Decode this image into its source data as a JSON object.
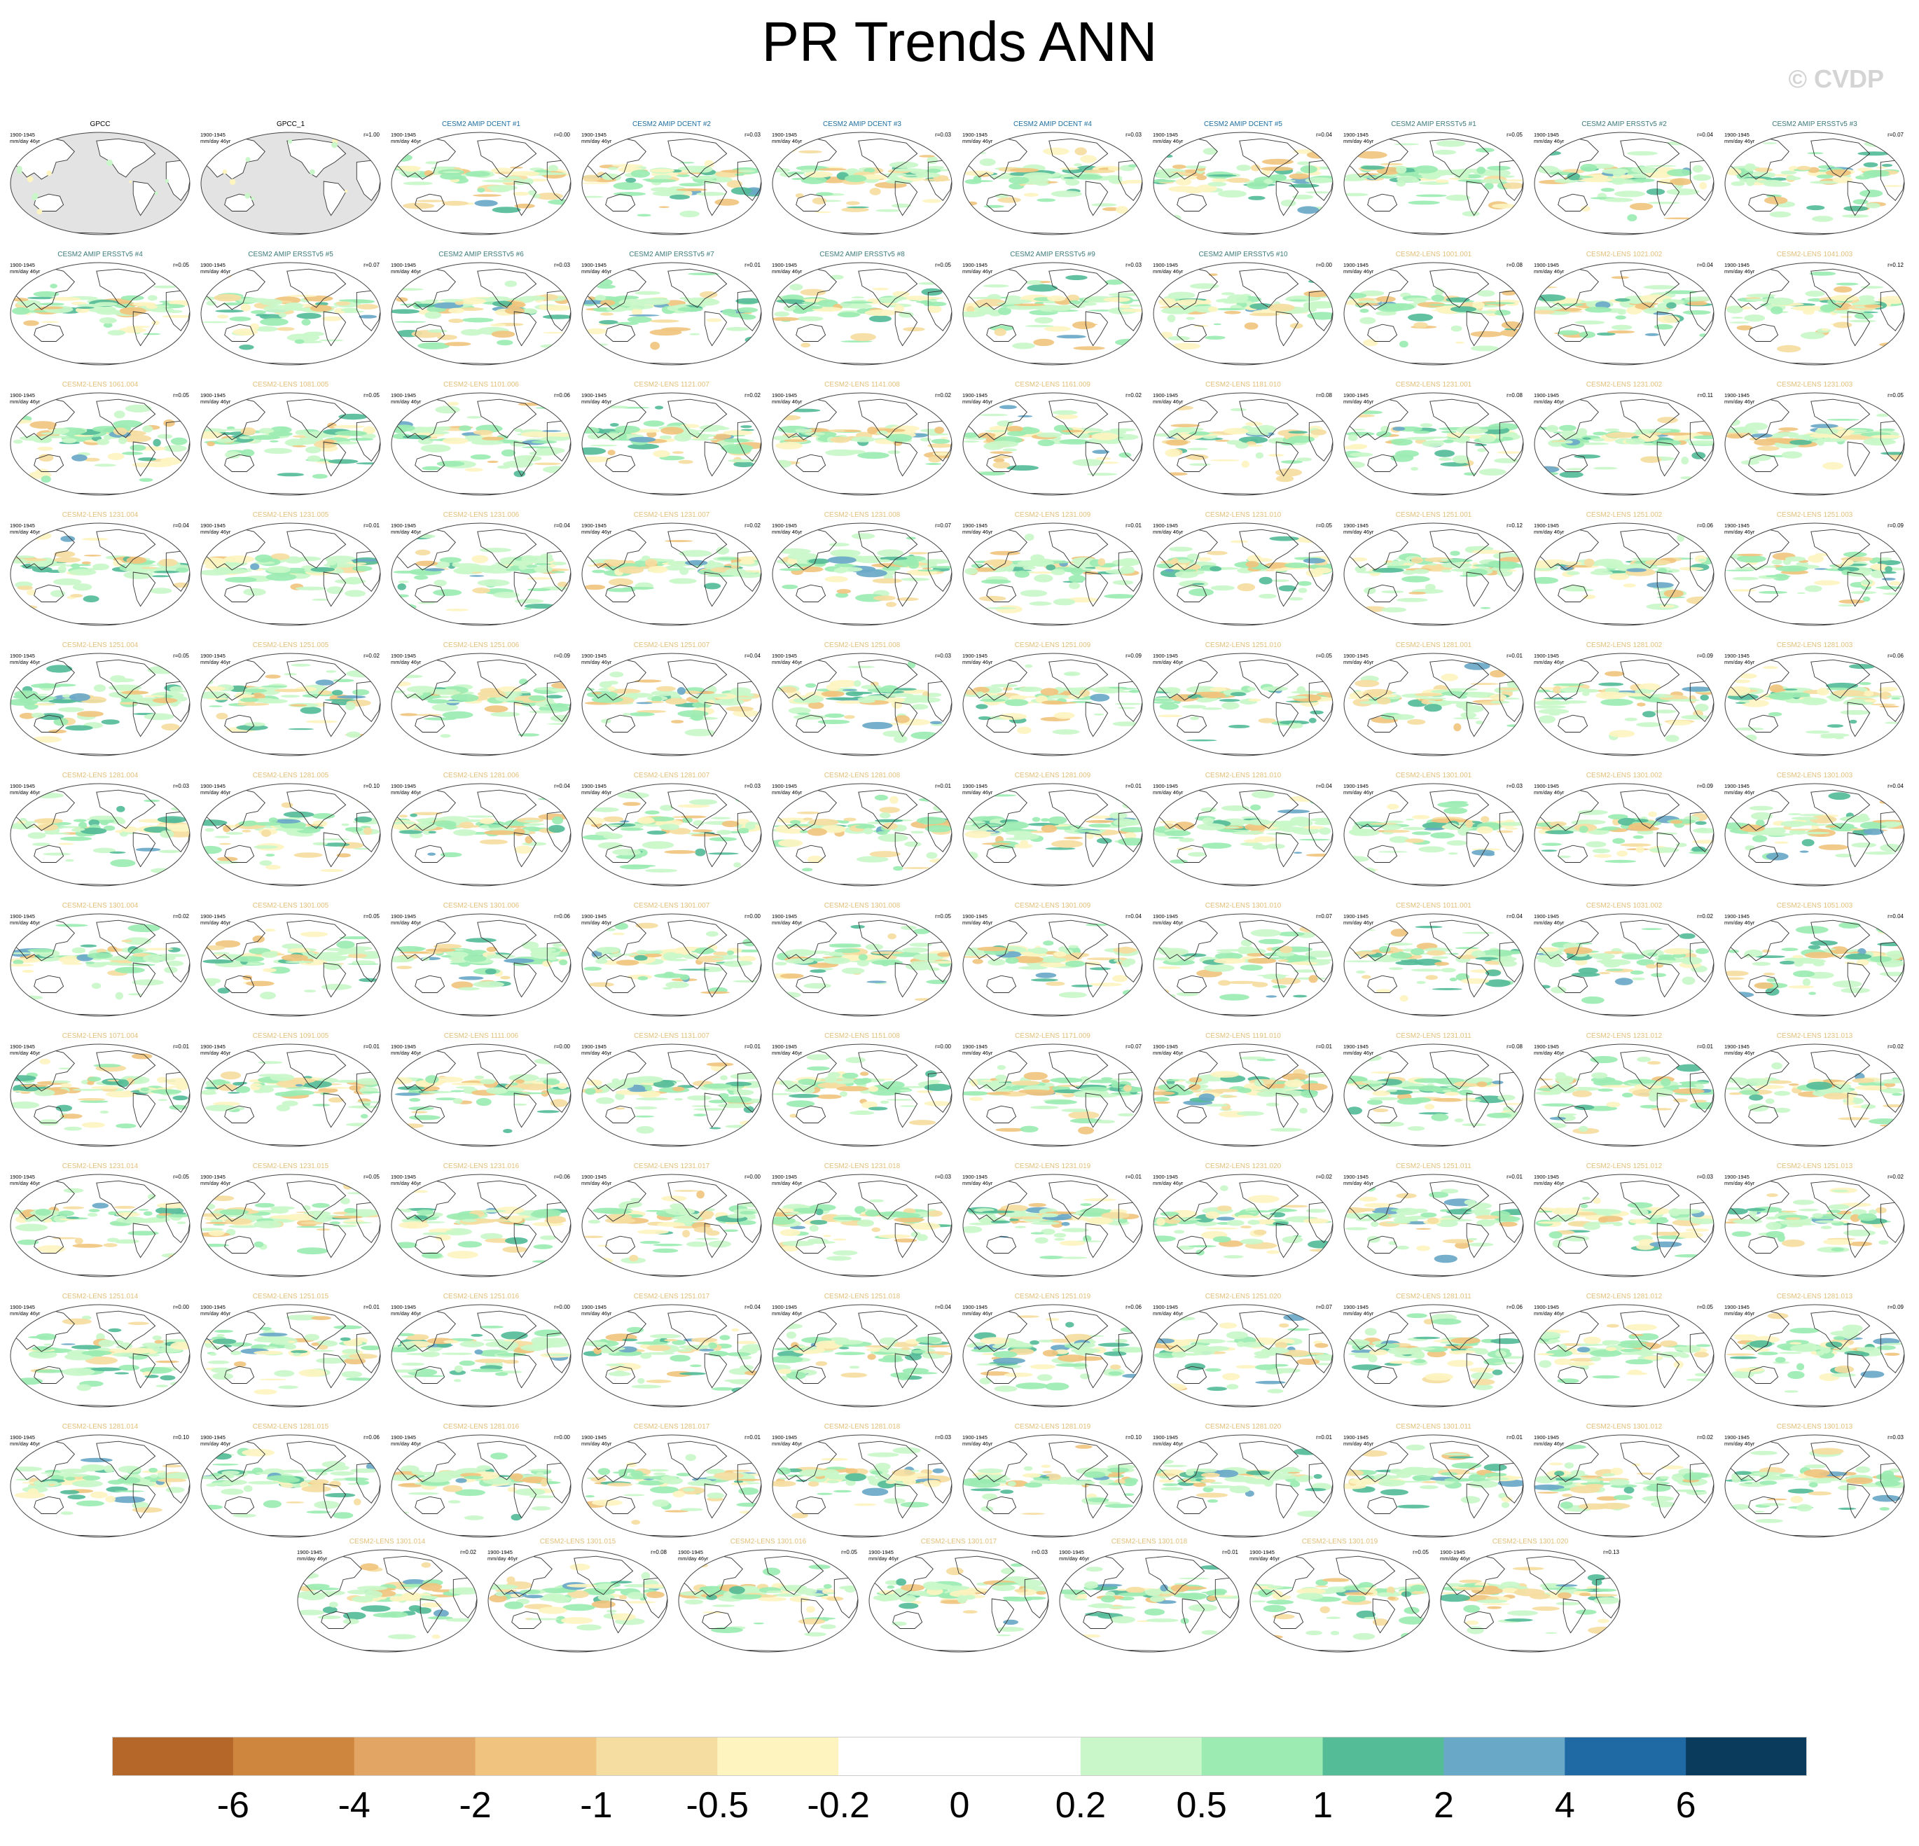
{
  "title": "PR Trends ANN",
  "watermark": "© CVDP",
  "panel_period": "1900-1945",
  "panel_units": "mm/day 46yr",
  "title_colors": {
    "obs": "#000000",
    "dcent": "#1f6fa0",
    "ersst": "#3d7a7a",
    "lens": "#e2c07a"
  },
  "palette": {
    "land": "#e3e3e3",
    "ocean": "#ffffff",
    "coast": "#333333"
  },
  "panels": [
    {
      "title": "GPCC",
      "group": "obs",
      "corr": ""
    },
    {
      "title": "GPCC_1",
      "group": "obs",
      "corr": "r=1.00"
    },
    {
      "title": "CESM2 AMIP DCENT #1",
      "group": "dcent",
      "corr": "r=0.00"
    },
    {
      "title": "CESM2 AMIP DCENT #2",
      "group": "dcent",
      "corr": "r=0.03"
    },
    {
      "title": "CESM2 AMIP DCENT #3",
      "group": "dcent",
      "corr": "r=0.03"
    },
    {
      "title": "CESM2 AMIP DCENT #4",
      "group": "dcent",
      "corr": "r=0.03"
    },
    {
      "title": "CESM2 AMIP DCENT #5",
      "group": "dcent",
      "corr": "r=0.04"
    },
    {
      "title": "CESM2 AMIP ERSSTv5 #1",
      "group": "ersst",
      "corr": "r=0.05"
    },
    {
      "title": "CESM2 AMIP ERSSTv5 #2",
      "group": "ersst",
      "corr": "r=0.04"
    },
    {
      "title": "CESM2 AMIP ERSSTv5 #3",
      "group": "ersst",
      "corr": "r=0.07"
    },
    {
      "title": "CESM2 AMIP ERSSTv5 #4",
      "group": "ersst",
      "corr": "r=0.05"
    },
    {
      "title": "CESM2 AMIP ERSSTv5 #5",
      "group": "ersst",
      "corr": "r=0.07"
    },
    {
      "title": "CESM2 AMIP ERSSTv5 #6",
      "group": "ersst",
      "corr": "r=0.03"
    },
    {
      "title": "CESM2 AMIP ERSSTv5 #7",
      "group": "ersst",
      "corr": "r=0.01"
    },
    {
      "title": "CESM2 AMIP ERSSTv5 #8",
      "group": "ersst",
      "corr": "r=0.05"
    },
    {
      "title": "CESM2 AMIP ERSSTv5 #9",
      "group": "ersst",
      "corr": "r=0.03"
    },
    {
      "title": "CESM2 AMIP ERSSTv5 #10",
      "group": "ersst",
      "corr": "r=0.00"
    },
    {
      "title": "CESM2-LENS 1001.001",
      "group": "lens",
      "corr": "r=0.08"
    },
    {
      "title": "CESM2-LENS 1021.002",
      "group": "lens",
      "corr": "r=0.04"
    },
    {
      "title": "CESM2-LENS 1041.003",
      "group": "lens",
      "corr": "r=0.12"
    },
    {
      "title": "CESM2-LENS 1061.004",
      "group": "lens",
      "corr": "r=0.05"
    },
    {
      "title": "CESM2-LENS 1081.005",
      "group": "lens",
      "corr": "r=0.05"
    },
    {
      "title": "CESM2-LENS 1101.006",
      "group": "lens",
      "corr": "r=0.06"
    },
    {
      "title": "CESM2-LENS 1121.007",
      "group": "lens",
      "corr": "r=0.02"
    },
    {
      "title": "CESM2-LENS 1141.008",
      "group": "lens",
      "corr": "r=0.02"
    },
    {
      "title": "CESM2-LENS 1161.009",
      "group": "lens",
      "corr": "r=0.02"
    },
    {
      "title": "CESM2-LENS 1181.010",
      "group": "lens",
      "corr": "r=0.08"
    },
    {
      "title": "CESM2-LENS 1231.001",
      "group": "lens",
      "corr": "r=0.08"
    },
    {
      "title": "CESM2-LENS 1231.002",
      "group": "lens",
      "corr": "r=0.11"
    },
    {
      "title": "CESM2-LENS 1231.003",
      "group": "lens",
      "corr": "r=0.05"
    },
    {
      "title": "CESM2-LENS 1231.004",
      "group": "lens",
      "corr": "r=0.04"
    },
    {
      "title": "CESM2-LENS 1231.005",
      "group": "lens",
      "corr": "r=0.01"
    },
    {
      "title": "CESM2-LENS 1231.006",
      "group": "lens",
      "corr": "r=0.04"
    },
    {
      "title": "CESM2-LENS 1231.007",
      "group": "lens",
      "corr": "r=0.02"
    },
    {
      "title": "CESM2-LENS 1231.008",
      "group": "lens",
      "corr": "r=0.07"
    },
    {
      "title": "CESM2-LENS 1231.009",
      "group": "lens",
      "corr": "r=0.01"
    },
    {
      "title": "CESM2-LENS 1231.010",
      "group": "lens",
      "corr": "r=0.05"
    },
    {
      "title": "CESM2-LENS 1251.001",
      "group": "lens",
      "corr": "r=0.12"
    },
    {
      "title": "CESM2-LENS 1251.002",
      "group": "lens",
      "corr": "r=0.06"
    },
    {
      "title": "CESM2-LENS 1251.003",
      "group": "lens",
      "corr": "r=0.09"
    },
    {
      "title": "CESM2-LENS 1251.004",
      "group": "lens",
      "corr": "r=0.05"
    },
    {
      "title": "CESM2-LENS 1251.005",
      "group": "lens",
      "corr": "r=0.02"
    },
    {
      "title": "CESM2-LENS 1251.006",
      "group": "lens",
      "corr": "r=0.09"
    },
    {
      "title": "CESM2-LENS 1251.007",
      "group": "lens",
      "corr": "r=0.04"
    },
    {
      "title": "CESM2-LENS 1251.008",
      "group": "lens",
      "corr": "r=0.03"
    },
    {
      "title": "CESM2-LENS 1251.009",
      "group": "lens",
      "corr": "r=0.09"
    },
    {
      "title": "CESM2-LENS 1251.010",
      "group": "lens",
      "corr": "r=0.05"
    },
    {
      "title": "CESM2-LENS 1281.001",
      "group": "lens",
      "corr": "r=0.01"
    },
    {
      "title": "CESM2-LENS 1281.002",
      "group": "lens",
      "corr": "r=0.09"
    },
    {
      "title": "CESM2-LENS 1281.003",
      "group": "lens",
      "corr": "r=0.06"
    },
    {
      "title": "CESM2-LENS 1281.004",
      "group": "lens",
      "corr": "r=0.03"
    },
    {
      "title": "CESM2-LENS 1281.005",
      "group": "lens",
      "corr": "r=0.10"
    },
    {
      "title": "CESM2-LENS 1281.006",
      "group": "lens",
      "corr": "r=0.04"
    },
    {
      "title": "CESM2-LENS 1281.007",
      "group": "lens",
      "corr": "r=0.03"
    },
    {
      "title": "CESM2-LENS 1281.008",
      "group": "lens",
      "corr": "r=0.01"
    },
    {
      "title": "CESM2-LENS 1281.009",
      "group": "lens",
      "corr": "r=0.01"
    },
    {
      "title": "CESM2-LENS 1281.010",
      "group": "lens",
      "corr": "r=0.04"
    },
    {
      "title": "CESM2-LENS 1301.001",
      "group": "lens",
      "corr": "r=0.03"
    },
    {
      "title": "CESM2-LENS 1301.002",
      "group": "lens",
      "corr": "r=0.09"
    },
    {
      "title": "CESM2-LENS 1301.003",
      "group": "lens",
      "corr": "r=0.04"
    },
    {
      "title": "CESM2-LENS 1301.004",
      "group": "lens",
      "corr": "r=0.02"
    },
    {
      "title": "CESM2-LENS 1301.005",
      "group": "lens",
      "corr": "r=0.05"
    },
    {
      "title": "CESM2-LENS 1301.006",
      "group": "lens",
      "corr": "r=0.06"
    },
    {
      "title": "CESM2-LENS 1301.007",
      "group": "lens",
      "corr": "r=0.00"
    },
    {
      "title": "CESM2-LENS 1301.008",
      "group": "lens",
      "corr": "r=0.05"
    },
    {
      "title": "CESM2-LENS 1301.009",
      "group": "lens",
      "corr": "r=0.04"
    },
    {
      "title": "CESM2-LENS 1301.010",
      "group": "lens",
      "corr": "r=0.07"
    },
    {
      "title": "CESM2-LENS 1011.001",
      "group": "lens",
      "corr": "r=0.04"
    },
    {
      "title": "CESM2-LENS 1031.002",
      "group": "lens",
      "corr": "r=0.02"
    },
    {
      "title": "CESM2-LENS 1051.003",
      "group": "lens",
      "corr": "r=0.04"
    },
    {
      "title": "CESM2-LENS 1071.004",
      "group": "lens",
      "corr": "r=0.01"
    },
    {
      "title": "CESM2-LENS 1091.005",
      "group": "lens",
      "corr": "r=0.01"
    },
    {
      "title": "CESM2-LENS 1111.006",
      "group": "lens",
      "corr": "r=0.00"
    },
    {
      "title": "CESM2-LENS 1131.007",
      "group": "lens",
      "corr": "r=0.01"
    },
    {
      "title": "CESM2-LENS 1151.008",
      "group": "lens",
      "corr": "r=0.00"
    },
    {
      "title": "CESM2-LENS 1171.009",
      "group": "lens",
      "corr": "r=0.07"
    },
    {
      "title": "CESM2-LENS 1191.010",
      "group": "lens",
      "corr": "r=0.01"
    },
    {
      "title": "CESM2-LENS 1231.011",
      "group": "lens",
      "corr": "r=0.08"
    },
    {
      "title": "CESM2-LENS 1231.012",
      "group": "lens",
      "corr": "r=0.01"
    },
    {
      "title": "CESM2-LENS 1231.013",
      "group": "lens",
      "corr": "r=0.02"
    },
    {
      "title": "CESM2-LENS 1231.014",
      "group": "lens",
      "corr": "r=0.05"
    },
    {
      "title": "CESM2-LENS 1231.015",
      "group": "lens",
      "corr": "r=0.05"
    },
    {
      "title": "CESM2-LENS 1231.016",
      "group": "lens",
      "corr": "r=0.06"
    },
    {
      "title": "CESM2-LENS 1231.017",
      "group": "lens",
      "corr": "r=0.00"
    },
    {
      "title": "CESM2-LENS 1231.018",
      "group": "lens",
      "corr": "r=0.03"
    },
    {
      "title": "CESM2-LENS 1231.019",
      "group": "lens",
      "corr": "r=0.01"
    },
    {
      "title": "CESM2-LENS 1231.020",
      "group": "lens",
      "corr": "r=0.02"
    },
    {
      "title": "CESM2-LENS 1251.011",
      "group": "lens",
      "corr": "r=0.01"
    },
    {
      "title": "CESM2-LENS 1251.012",
      "group": "lens",
      "corr": "r=0.03"
    },
    {
      "title": "CESM2-LENS 1251.013",
      "group": "lens",
      "corr": "r=0.02"
    },
    {
      "title": "CESM2-LENS 1251.014",
      "group": "lens",
      "corr": "r=0.00"
    },
    {
      "title": "CESM2-LENS 1251.015",
      "group": "lens",
      "corr": "r=0.01"
    },
    {
      "title": "CESM2-LENS 1251.016",
      "group": "lens",
      "corr": "r=0.00"
    },
    {
      "title": "CESM2-LENS 1251.017",
      "group": "lens",
      "corr": "r=0.04"
    },
    {
      "title": "CESM2-LENS 1251.018",
      "group": "lens",
      "corr": "r=0.04"
    },
    {
      "title": "CESM2-LENS 1251.019",
      "group": "lens",
      "corr": "r=0.06"
    },
    {
      "title": "CESM2-LENS 1251.020",
      "group": "lens",
      "corr": "r=0.07"
    },
    {
      "title": "CESM2-LENS 1281.011",
      "group": "lens",
      "corr": "r=0.06"
    },
    {
      "title": "CESM2-LENS 1281.012",
      "group": "lens",
      "corr": "r=0.05"
    },
    {
      "title": "CESM2-LENS 1281.013",
      "group": "lens",
      "corr": "r=0.09"
    },
    {
      "title": "CESM2-LENS 1281.014",
      "group": "lens",
      "corr": "r=0.10"
    },
    {
      "title": "CESM2-LENS 1281.015",
      "group": "lens",
      "corr": "r=0.06"
    },
    {
      "title": "CESM2-LENS 1281.016",
      "group": "lens",
      "corr": "r=0.00"
    },
    {
      "title": "CESM2-LENS 1281.017",
      "group": "lens",
      "corr": "r=0.01"
    },
    {
      "title": "CESM2-LENS 1281.018",
      "group": "lens",
      "corr": "r=0.03"
    },
    {
      "title": "CESM2-LENS 1281.019",
      "group": "lens",
      "corr": "r=0.10"
    },
    {
      "title": "CESM2-LENS 1281.020",
      "group": "lens",
      "corr": "r=0.01"
    },
    {
      "title": "CESM2-LENS 1301.011",
      "group": "lens",
      "corr": "r=0.01"
    },
    {
      "title": "CESM2-LENS 1301.012",
      "group": "lens",
      "corr": "r=0.02"
    },
    {
      "title": "CESM2-LENS 1301.013",
      "group": "lens",
      "corr": "r=0.03"
    },
    {
      "title": "CESM2-LENS 1301.014",
      "group": "lens",
      "corr": "r=0.02"
    },
    {
      "title": "CESM2-LENS 1301.015",
      "group": "lens",
      "corr": "r=0.08"
    },
    {
      "title": "CESM2-LENS 1301.016",
      "group": "lens",
      "corr": "r=0.05"
    },
    {
      "title": "CESM2-LENS 1301.017",
      "group": "lens",
      "corr": "r=0.03"
    },
    {
      "title": "CESM2-LENS 1301.018",
      "group": "lens",
      "corr": "r=0.01"
    },
    {
      "title": "CESM2-LENS 1301.019",
      "group": "lens",
      "corr": "r=0.05"
    },
    {
      "title": "CESM2-LENS 1301.020",
      "group": "lens",
      "corr": "r=0.13"
    }
  ],
  "chart_data": {
    "type": "heatmap",
    "title": "PR Trends ANN",
    "units": "mm/day 46yr",
    "period": "1900-1945",
    "projection": "robinson",
    "panel_count": 117,
    "colorbar": {
      "tick_labels": [
        "-6",
        "-4",
        "-2",
        "-1",
        "-0.5",
        "-0.2",
        "0",
        "0.2",
        "0.5",
        "1",
        "2",
        "4",
        "6"
      ],
      "colors": [
        "#b5672a",
        "#ce853d",
        "#e2a563",
        "#f0c47e",
        "#f5dda1",
        "#fdf4c0",
        "#ffffff",
        "#ffffff",
        "#c9f7c9",
        "#9bebb2",
        "#55bc98",
        "#6aa8c8",
        "#1f6aa5",
        "#0a3a5c"
      ]
    }
  }
}
